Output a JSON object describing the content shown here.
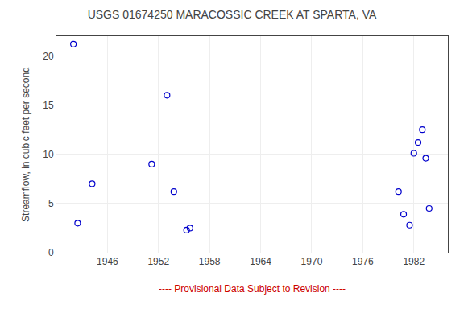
{
  "chart_data": {
    "type": "scatter",
    "title": "USGS 01674250 MARACOSSIC CREEK AT SPARTA, VA",
    "ylabel": "Streamflow, in cubic feet per second",
    "x": [
      1942.0,
      1942.5,
      1944.2,
      1951.2,
      1953.0,
      1953.8,
      1955.3,
      1955.7,
      1980.2,
      1980.8,
      1981.5,
      1982.0,
      1982.5,
      1983.0,
      1983.4,
      1983.8
    ],
    "values": [
      21.2,
      3.0,
      7.0,
      9.0,
      16.0,
      6.2,
      2.3,
      2.5,
      6.2,
      3.9,
      2.8,
      10.1,
      11.2,
      12.5,
      9.6,
      4.5
    ],
    "color": "#0000CC",
    "marker": "circle-open",
    "xlim": [
      1940,
      1986
    ],
    "xticks": [
      1946,
      1952,
      1958,
      1964,
      1970,
      1976,
      1982
    ],
    "ylim": [
      0,
      22
    ],
    "yticks": [
      0,
      5,
      10,
      15,
      20
    ],
    "grid": true,
    "annotations": [
      {
        "text": "---- Provisional Data Subject to Revision ----",
        "color": "#cc0000"
      }
    ]
  }
}
